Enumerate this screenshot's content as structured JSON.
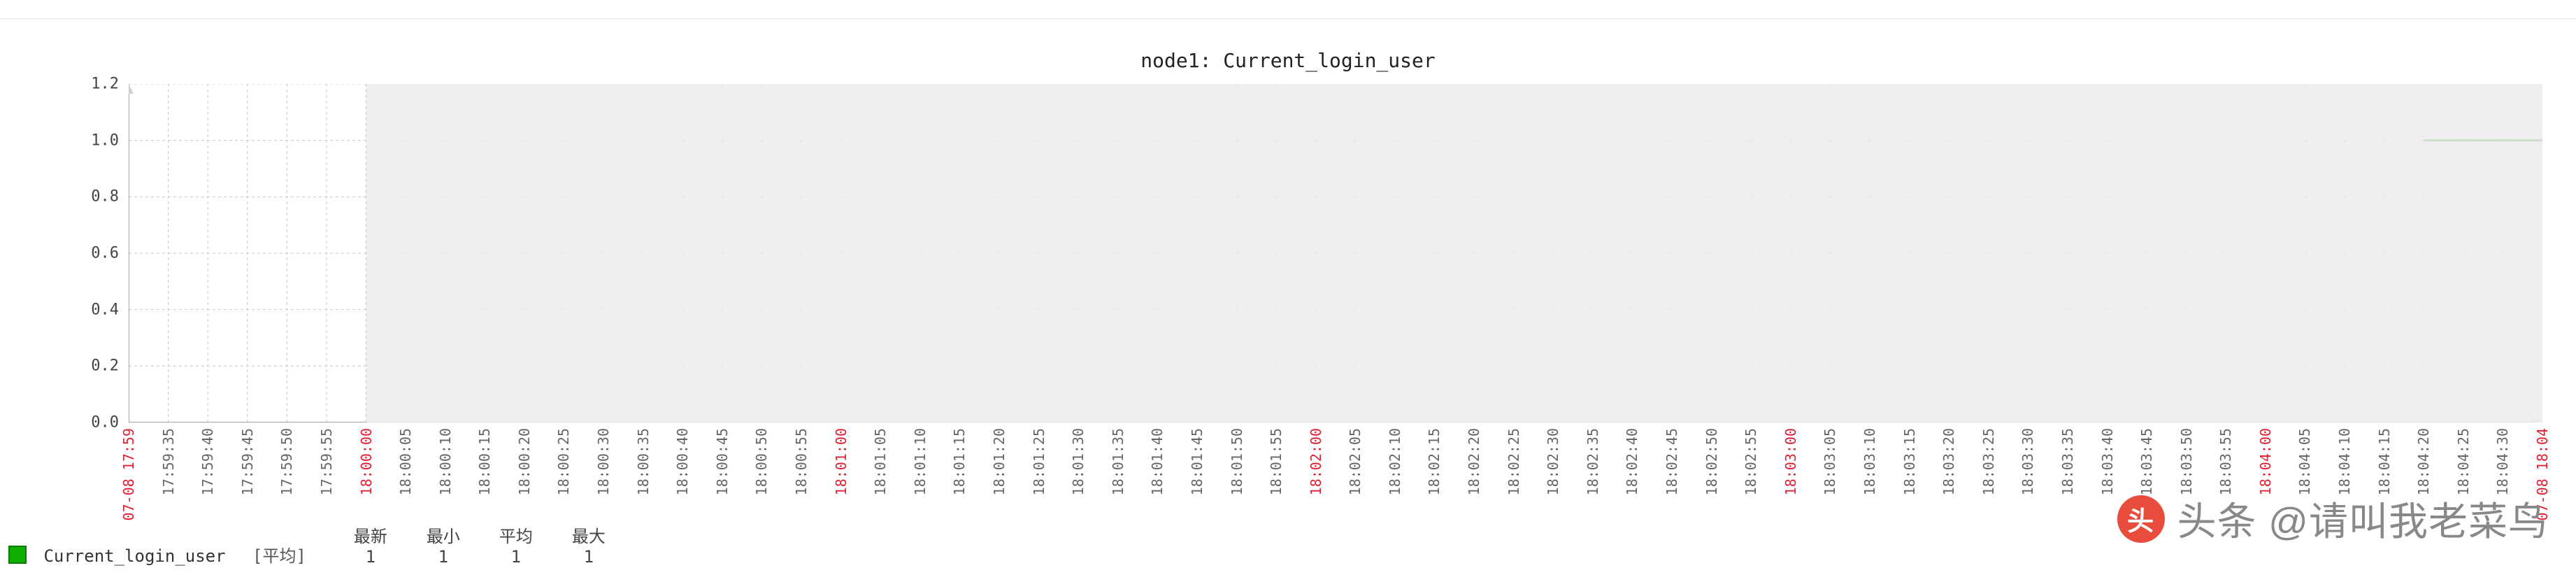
{
  "title": "node1: Current_login_user",
  "chart": {
    "type": "line",
    "background_color": "#ffffff",
    "plot_area_color": "#ffffff",
    "shade_color": "#ececec",
    "gridline_color": "#c9c9c9",
    "gridline_dash": "4 4",
    "axis_color": "#888888",
    "y": {
      "min": 0,
      "max": 1.2,
      "ticks": [
        0,
        0.2,
        0.4,
        0.6,
        0.8,
        1.0,
        1.2
      ],
      "label_fontsize": 22,
      "label_color": "#444444"
    },
    "x": {
      "unit": "seconds_from_start",
      "start_label": "07-08 17:59",
      "end_label": "07-08 18:04",
      "start_sec": -30,
      "end_sec": 275,
      "minor_step_sec": 5,
      "majors_sec": [
        0,
        60,
        120,
        180,
        240
      ],
      "shade_from_sec": 0,
      "minor_labels": [
        "17:59:35",
        "17:59:40",
        "17:59:45",
        "17:59:50",
        "17:59:55",
        "18:00:05",
        "18:00:10",
        "18:00:15",
        "18:00:20",
        "18:00:25",
        "18:00:30",
        "18:00:35",
        "18:00:40",
        "18:00:45",
        "18:00:50",
        "18:00:55",
        "18:01:05",
        "18:01:10",
        "18:01:15",
        "18:01:20",
        "18:01:25",
        "18:01:30",
        "18:01:35",
        "18:01:40",
        "18:01:45",
        "18:01:50",
        "18:01:55",
        "18:02:05",
        "18:02:10",
        "18:02:15",
        "18:02:20",
        "18:02:25",
        "18:02:30",
        "18:02:35",
        "18:02:40",
        "18:02:45",
        "18:02:50",
        "18:02:55",
        "18:03:05",
        "18:03:10",
        "18:03:15",
        "18:03:20",
        "18:03:25",
        "18:03:30",
        "18:03:35",
        "18:03:40",
        "18:03:45",
        "18:03:50",
        "18:03:55",
        "18:04:05",
        "18:04:10",
        "18:04:15",
        "18:04:20",
        "18:04:25",
        "18:04:30"
      ],
      "major_labels": [
        "18:00:00",
        "18:01:00",
        "18:02:00",
        "18:03:00",
        "18:04:00"
      ],
      "tick_fontsize": 20,
      "tick_color": "#666666",
      "major_color": "#dd2233"
    },
    "series": [
      {
        "name": "Current_login_user",
        "color": "#119a00",
        "line_width": 3,
        "points": [
          [
            260,
            1.0
          ],
          [
            275,
            1.0
          ]
        ]
      }
    ]
  },
  "legend": {
    "series_name": "Current_login_user",
    "swatch_color": "#0fae00",
    "swatch_border": "#0a7a00",
    "mode_label": "[平均]",
    "columns": [
      "最新",
      "最小",
      "平均",
      "最大"
    ],
    "values": [
      "1",
      "1",
      "1",
      "1"
    ],
    "fontsize": 24
  },
  "watermark": {
    "text": "头条 @请叫我老菜鸟",
    "brand_glyph": "头",
    "brand_bg": "#e74c3c"
  }
}
